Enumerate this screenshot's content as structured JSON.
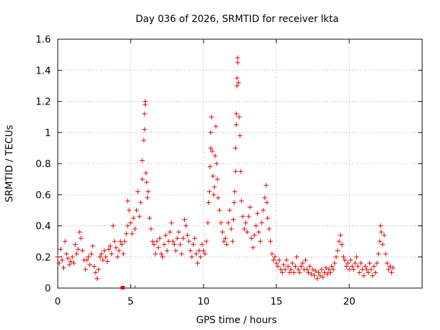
{
  "chart_data": {
    "type": "scatter",
    "title": "Day 036 of 2026, SRMTID for receiver lkta",
    "xlabel": "GPS time / hours",
    "ylabel": "SRMTID / TECUs",
    "xlim": [
      0,
      25
    ],
    "ylim": [
      0,
      1.6
    ],
    "x_ticks": [
      0,
      5,
      10,
      15,
      20
    ],
    "x_tick_labels": [
      "0",
      "5",
      "10",
      "15",
      "20"
    ],
    "y_ticks": [
      0,
      0.2,
      0.4,
      0.6,
      0.8,
      1.0,
      1.2,
      1.4,
      1.6
    ],
    "y_tick_labels": [
      "0",
      "0.2",
      "0.4",
      "0.6",
      "0.8",
      "1",
      "1.2",
      "1.4",
      "1.6"
    ],
    "grid": true,
    "marker": "+",
    "series": [
      {
        "name": "SRMTID",
        "color": "#e00000",
        "points": [
          [
            0.0,
            0.2
          ],
          [
            0.1,
            0.16
          ],
          [
            0.2,
            0.25
          ],
          [
            0.3,
            0.18
          ],
          [
            0.4,
            0.13
          ],
          [
            0.5,
            0.3
          ],
          [
            0.6,
            0.22
          ],
          [
            0.7,
            0.19
          ],
          [
            0.8,
            0.15
          ],
          [
            0.9,
            0.17
          ],
          [
            1.0,
            0.2
          ],
          [
            1.1,
            0.16
          ],
          [
            1.2,
            0.28
          ],
          [
            1.3,
            0.22
          ],
          [
            1.4,
            0.25
          ],
          [
            1.5,
            0.36
          ],
          [
            1.6,
            0.32
          ],
          [
            1.7,
            0.24
          ],
          [
            1.8,
            0.18
          ],
          [
            1.9,
            0.12
          ],
          [
            2.0,
            0.18
          ],
          [
            2.1,
            0.2
          ],
          [
            2.2,
            0.15
          ],
          [
            2.3,
            0.22
          ],
          [
            2.4,
            0.27
          ],
          [
            2.5,
            0.14
          ],
          [
            2.6,
            0.1
          ],
          [
            2.7,
            0.06
          ],
          [
            2.8,
            0.12
          ],
          [
            2.9,
            0.2
          ],
          [
            3.0,
            0.22
          ],
          [
            3.1,
            0.18
          ],
          [
            3.2,
            0.24
          ],
          [
            3.3,
            0.2
          ],
          [
            3.4,
            0.17
          ],
          [
            3.5,
            0.25
          ],
          [
            3.6,
            0.27
          ],
          [
            3.7,
            0.22
          ],
          [
            3.8,
            0.4
          ],
          [
            3.9,
            0.3
          ],
          [
            4.0,
            0.26
          ],
          [
            4.1,
            0.2
          ],
          [
            4.2,
            0.24
          ],
          [
            4.3,
            0.3
          ],
          [
            4.4,
            0.28
          ],
          [
            4.5,
            0.22
          ],
          [
            4.6,
            0.3
          ],
          [
            4.7,
            0.35
          ],
          [
            4.8,
            0.4
          ],
          [
            4.9,
            0.5
          ],
          [
            4.8,
            0.56
          ],
          [
            5.0,
            0.42
          ],
          [
            5.1,
            0.35
          ],
          [
            5.2,
            0.45
          ],
          [
            5.3,
            0.38
          ],
          [
            5.4,
            0.5
          ],
          [
            5.5,
            0.62
          ],
          [
            5.6,
            0.46
          ],
          [
            5.7,
            0.55
          ],
          [
            5.8,
            0.7
          ],
          [
            5.8,
            0.82
          ],
          [
            5.9,
            0.95
          ],
          [
            5.95,
            1.02
          ],
          [
            5.95,
            1.12
          ],
          [
            6.0,
            1.18
          ],
          [
            6.0,
            1.2
          ],
          [
            6.05,
            0.74
          ],
          [
            6.1,
            0.68
          ],
          [
            6.15,
            0.58
          ],
          [
            6.2,
            0.62
          ],
          [
            6.3,
            0.45
          ],
          [
            6.4,
            0.38
          ],
          [
            6.5,
            0.3
          ],
          [
            6.6,
            0.28
          ],
          [
            6.7,
            0.22
          ],
          [
            6.8,
            0.3
          ],
          [
            6.9,
            0.26
          ],
          [
            7.0,
            0.32
          ],
          [
            7.1,
            0.22
          ],
          [
            7.2,
            0.2
          ],
          [
            7.3,
            0.28
          ],
          [
            7.4,
            0.34
          ],
          [
            7.5,
            0.24
          ],
          [
            7.6,
            0.3
          ],
          [
            7.7,
            0.36
          ],
          [
            7.8,
            0.42
          ],
          [
            7.9,
            0.3
          ],
          [
            8.0,
            0.28
          ],
          [
            8.1,
            0.24
          ],
          [
            8.2,
            0.32
          ],
          [
            8.3,
            0.36
          ],
          [
            8.4,
            0.28
          ],
          [
            8.5,
            0.22
          ],
          [
            8.6,
            0.32
          ],
          [
            8.7,
            0.44
          ],
          [
            8.8,
            0.4
          ],
          [
            8.9,
            0.34
          ],
          [
            9.0,
            0.3
          ],
          [
            9.1,
            0.24
          ],
          [
            9.2,
            0.2
          ],
          [
            9.3,
            0.28
          ],
          [
            9.4,
            0.32
          ],
          [
            9.5,
            0.22
          ],
          [
            9.6,
            0.16
          ],
          [
            9.7,
            0.24
          ],
          [
            9.8,
            0.2
          ],
          [
            9.9,
            0.28
          ],
          [
            10.0,
            0.24
          ],
          [
            10.1,
            0.22
          ],
          [
            10.2,
            0.3
          ],
          [
            10.3,
            0.42
          ],
          [
            10.35,
            0.55
          ],
          [
            10.4,
            0.62
          ],
          [
            10.45,
            0.78
          ],
          [
            10.5,
            0.9
          ],
          [
            10.5,
            1.0
          ],
          [
            10.55,
            1.1
          ],
          [
            10.6,
            0.88
          ],
          [
            10.65,
            0.72
          ],
          [
            10.7,
            0.6
          ],
          [
            10.75,
            0.65
          ],
          [
            10.8,
            0.85
          ],
          [
            10.85,
            1.04
          ],
          [
            10.9,
            0.8
          ],
          [
            10.95,
            0.7
          ],
          [
            11.0,
            0.58
          ],
          [
            11.1,
            0.5
          ],
          [
            11.2,
            0.42
          ],
          [
            11.3,
            0.36
          ],
          [
            11.4,
            0.3
          ],
          [
            11.5,
            0.32
          ],
          [
            11.6,
            0.28
          ],
          [
            11.7,
            0.42
          ],
          [
            11.8,
            0.5
          ],
          [
            11.9,
            0.38
          ],
          [
            12.0,
            0.3
          ],
          [
            12.05,
            0.44
          ],
          [
            12.1,
            0.55
          ],
          [
            12.15,
            0.62
          ],
          [
            12.2,
            0.75
          ],
          [
            12.2,
            0.9
          ],
          [
            12.25,
            1.05
          ],
          [
            12.25,
            1.12
          ],
          [
            12.3,
            1.3
          ],
          [
            12.3,
            1.35
          ],
          [
            12.35,
            1.45
          ],
          [
            12.35,
            1.48
          ],
          [
            12.4,
            1.32
          ],
          [
            12.45,
            1.1
          ],
          [
            12.5,
            0.98
          ],
          [
            12.55,
            0.75
          ],
          [
            12.6,
            0.56
          ],
          [
            12.7,
            0.46
          ],
          [
            12.8,
            0.38
          ],
          [
            12.9,
            0.42
          ],
          [
            13.0,
            0.36
          ],
          [
            13.1,
            0.46
          ],
          [
            13.2,
            0.52
          ],
          [
            13.3,
            0.32
          ],
          [
            13.4,
            0.26
          ],
          [
            13.5,
            0.34
          ],
          [
            13.6,
            0.4
          ],
          [
            13.7,
            0.48
          ],
          [
            13.8,
            0.36
          ],
          [
            13.9,
            0.3
          ],
          [
            14.0,
            0.42
          ],
          [
            14.1,
            0.5
          ],
          [
            14.2,
            0.58
          ],
          [
            14.3,
            0.66
          ],
          [
            14.35,
            0.55
          ],
          [
            14.4,
            0.45
          ],
          [
            14.5,
            0.38
          ],
          [
            14.6,
            0.3
          ],
          [
            14.7,
            0.22
          ],
          [
            14.8,
            0.18
          ],
          [
            14.9,
            0.2
          ],
          [
            15.0,
            0.16
          ],
          [
            15.1,
            0.14
          ],
          [
            15.2,
            0.18
          ],
          [
            15.3,
            0.12
          ],
          [
            15.4,
            0.1
          ],
          [
            15.5,
            0.15
          ],
          [
            15.6,
            0.12
          ],
          [
            15.7,
            0.18
          ],
          [
            15.8,
            0.14
          ],
          [
            15.9,
            0.1
          ],
          [
            16.0,
            0.12
          ],
          [
            16.1,
            0.16
          ],
          [
            16.2,
            0.1
          ],
          [
            16.3,
            0.14
          ],
          [
            16.4,
            0.2
          ],
          [
            16.5,
            0.12
          ],
          [
            16.6,
            0.1
          ],
          [
            16.7,
            0.14
          ],
          [
            16.8,
            0.16
          ],
          [
            16.9,
            0.12
          ],
          [
            17.0,
            0.18
          ],
          [
            17.1,
            0.12
          ],
          [
            17.2,
            0.1
          ],
          [
            17.3,
            0.14
          ],
          [
            17.4,
            0.09
          ],
          [
            17.5,
            0.12
          ],
          [
            17.6,
            0.08
          ],
          [
            17.7,
            0.11
          ],
          [
            17.8,
            0.06
          ],
          [
            17.9,
            0.1
          ],
          [
            18.0,
            0.08
          ],
          [
            18.1,
            0.12
          ],
          [
            18.2,
            0.07
          ],
          [
            18.3,
            0.1
          ],
          [
            18.4,
            0.13
          ],
          [
            18.5,
            0.09
          ],
          [
            18.6,
            0.12
          ],
          [
            18.7,
            0.1
          ],
          [
            18.8,
            0.14
          ],
          [
            18.9,
            0.12
          ],
          [
            19.0,
            0.16
          ],
          [
            19.1,
            0.2
          ],
          [
            19.2,
            0.24
          ],
          [
            19.3,
            0.3
          ],
          [
            19.4,
            0.34
          ],
          [
            19.5,
            0.28
          ],
          [
            19.6,
            0.2
          ],
          [
            19.7,
            0.18
          ],
          [
            19.8,
            0.14
          ],
          [
            19.9,
            0.16
          ],
          [
            20.0,
            0.12
          ],
          [
            20.1,
            0.18
          ],
          [
            20.2,
            0.14
          ],
          [
            20.3,
            0.12
          ],
          [
            20.4,
            0.16
          ],
          [
            20.5,
            0.2
          ],
          [
            20.6,
            0.14
          ],
          [
            20.7,
            0.1
          ],
          [
            20.8,
            0.16
          ],
          [
            20.9,
            0.12
          ],
          [
            21.0,
            0.08
          ],
          [
            21.1,
            0.14
          ],
          [
            21.2,
            0.12
          ],
          [
            21.3,
            0.1
          ],
          [
            21.4,
            0.16
          ],
          [
            21.5,
            0.12
          ],
          [
            21.6,
            0.08
          ],
          [
            21.7,
            0.14
          ],
          [
            21.8,
            0.1
          ],
          [
            21.9,
            0.16
          ],
          [
            22.0,
            0.22
          ],
          [
            22.1,
            0.3
          ],
          [
            22.15,
            0.4
          ],
          [
            22.2,
            0.36
          ],
          [
            22.3,
            0.28
          ],
          [
            22.4,
            0.34
          ],
          [
            22.5,
            0.22
          ],
          [
            22.6,
            0.16
          ],
          [
            22.7,
            0.12
          ],
          [
            22.8,
            0.14
          ],
          [
            22.9,
            0.1
          ],
          [
            23.0,
            0.13
          ]
        ]
      }
    ],
    "outlier_markers": [
      {
        "x": 4.45,
        "y": 0.0,
        "marker": "square"
      },
      {
        "x": 5.3,
        "y": 0.0,
        "marker": "tick"
      }
    ]
  }
}
